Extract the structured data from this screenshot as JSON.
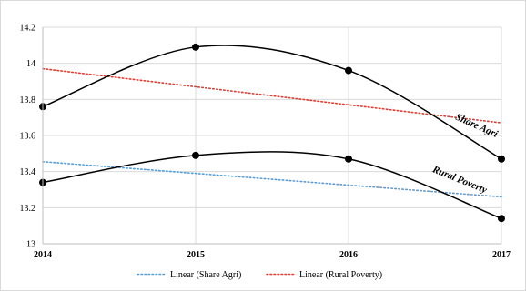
{
  "chart_data": {
    "type": "line",
    "categories": [
      "2014",
      "2015",
      "2016",
      "2017"
    ],
    "y_ticks": [
      "13",
      "13.2",
      "13.4",
      "13.6",
      "13.8",
      "14",
      "14.2"
    ],
    "ylim": [
      13,
      14.2
    ],
    "grid": true,
    "series": [
      {
        "name": "Share Agri",
        "values": [
          13.76,
          14.09,
          13.96,
          13.47
        ],
        "color": "#000000",
        "smooth": true
      },
      {
        "name": "Rural Poverty",
        "values": [
          13.34,
          13.49,
          13.47,
          13.14
        ],
        "color": "#000000",
        "smooth": true
      }
    ],
    "trendlines": [
      {
        "name": "Linear (Share Agri)",
        "start": 13.455,
        "end": 13.26,
        "color": "#5b9bd5"
      },
      {
        "name": "Linear (Rural Poverty)",
        "start": 13.97,
        "end": 13.67,
        "color": "#e03c31"
      }
    ],
    "annotations": [
      {
        "text": "Share Agri",
        "x": 2016.83,
        "y": 13.64,
        "angle": 24
      },
      {
        "text": "Rural Poverty",
        "x": 2016.72,
        "y": 13.34,
        "angle": 22
      }
    ],
    "legend": {
      "placement": "bottom"
    }
  }
}
